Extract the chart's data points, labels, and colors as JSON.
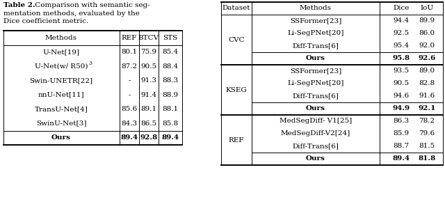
{
  "caption_bold": "Table 2.",
  "caption_rest": " Comparison with semantic seg-\nmentation methods, evaluated by the\nDice coefficient metric.",
  "table1": {
    "headers": [
      "Methods",
      "REF",
      "BTCV",
      "STS"
    ],
    "rows": [
      [
        "U-Net[19]",
        "80.1",
        "75.9",
        "85.4",
        false
      ],
      [
        "U-Net(w/ R50)",
        "87.2",
        "90.5",
        "88.4",
        false
      ],
      [
        "Swin-UNETR[22]",
        "-",
        "91.3",
        "88.3",
        false
      ],
      [
        "nnU-Net[11]",
        "-",
        "91.4",
        "88.9",
        false
      ],
      [
        "TransU-Net[4]",
        "85.6",
        "89.1",
        "88.1",
        false
      ],
      [
        "SwinU-Net[3]",
        "84.3",
        "86.5",
        "85.8",
        false
      ],
      [
        "Ours",
        "89.4",
        "92.8",
        "89.4",
        true
      ]
    ]
  },
  "table2": {
    "headers": [
      "Dataset",
      "Methods",
      "Dice",
      "IoU"
    ],
    "groups": [
      {
        "dataset": "CVC",
        "rows": [
          [
            "SSFormer[23]",
            "94.4",
            "89.9",
            false
          ],
          [
            "Li-SegPNet[20]",
            "92.5",
            "86.0",
            false
          ],
          [
            "Diff-Trans[6]",
            "95.4",
            "92.0",
            false
          ],
          [
            "Ours",
            "95.8",
            "92.6",
            true
          ]
        ]
      },
      {
        "dataset": "KSEG",
        "rows": [
          [
            "SSFormer[23]",
            "93.5",
            "89.0",
            false
          ],
          [
            "Li-SegPNet[20]",
            "90.5",
            "82.8",
            false
          ],
          [
            "Diff-Trans[6]",
            "94.6",
            "91.6",
            false
          ],
          [
            "Ours",
            "94.9",
            "92.1",
            true
          ]
        ]
      },
      {
        "dataset": "REF",
        "rows": [
          [
            "MedSegDiff- V1[25]",
            "86.3",
            "78.2",
            false
          ],
          [
            "MedSegDiff-V2[24]",
            "85.9",
            "79.6",
            false
          ],
          [
            "Diff-Trans[6]",
            "88.7",
            "81.5",
            false
          ],
          [
            "Ours",
            "89.4",
            "81.8",
            true
          ]
        ]
      }
    ]
  },
  "bg_color": "#ffffff",
  "font_family": "DejaVu Serif",
  "base_fs": 7.5,
  "lw_thick": 1.4,
  "lw_thin": 0.7
}
